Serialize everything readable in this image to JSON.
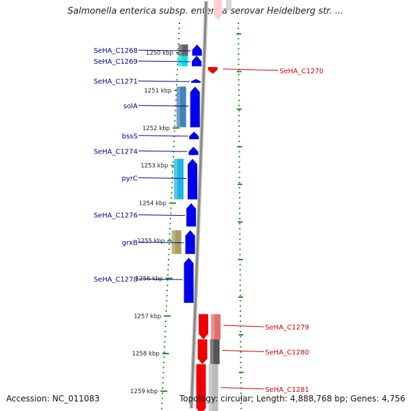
{
  "title": "Salmonella enterica subsp. enterica serovar Heidelberg str. ...",
  "footer": {
    "accession": "Accession: NC_011083",
    "summary": "Topology: circular; Length: 4,888,768 bp; Genes: 4,756"
  },
  "ticks": [
    {
      "label": "1250 kbp",
      "pos": 1250
    },
    {
      "label": "1251 kbp",
      "pos": 1251
    },
    {
      "label": "1252 kbp",
      "pos": 1252
    },
    {
      "label": "1253 kbp",
      "pos": 1253
    },
    {
      "label": "1254 kbp",
      "pos": 1254
    },
    {
      "label": "1255 kbp",
      "pos": 1255
    },
    {
      "label": "1256 kbp",
      "pos": 1256
    },
    {
      "label": "1257 kbp",
      "pos": 1257
    },
    {
      "label": "1258 kbp",
      "pos": 1258
    },
    {
      "label": "1259 kbp",
      "pos": 1259
    }
  ],
  "left_genes": [
    {
      "label": "SeHA_C1268",
      "start": 1249.78,
      "end": 1250.08,
      "cog_color": "#666666"
    },
    {
      "label": "SeHA_C1269",
      "start": 1250.08,
      "end": 1250.36,
      "cog_color": "#00e5ee"
    },
    {
      "label": "SeHA_C1271",
      "start": 1250.7,
      "end": 1250.8,
      "cog_color": null
    },
    {
      "label": "solA",
      "start": 1250.9,
      "end": 1251.98,
      "cog_color": "#4682b4"
    },
    {
      "label": "bssS",
      "start": 1252.1,
      "end": 1252.3,
      "cog_color": null
    },
    {
      "label": "SeHA_C1274",
      "start": 1252.5,
      "end": 1252.72,
      "cog_color": null
    },
    {
      "label": "pyrC",
      "start": 1252.82,
      "end": 1253.9,
      "cog_color": "#1eb4e6"
    },
    {
      "label": "SeHA_C1276",
      "start": 1254.0,
      "end": 1254.62,
      "cog_color": null
    },
    {
      "label": "grxB",
      "start": 1254.72,
      "end": 1255.35,
      "cog_color": "#a89f60"
    },
    {
      "label": "SeHA_C1278",
      "start": 1255.45,
      "end": 1256.65,
      "cog_color": null
    }
  ],
  "right_genes": [
    {
      "label": "SeHA_C1270",
      "start": 1250.38,
      "end": 1250.56,
      "cog_color": null
    },
    {
      "label": "SeHA_C1279",
      "start": 1256.95,
      "end": 1257.62,
      "cog_color": "#e07070"
    },
    {
      "label": "SeHA_C1280",
      "start": 1257.62,
      "end": 1258.28,
      "cog_color": "#555555"
    },
    {
      "label": "SeHA_C1281",
      "start": 1258.28,
      "end": 1259.6,
      "cog_color": "#bbbbbb"
    }
  ],
  "colors": {
    "forward": "#0000ee",
    "reverse": "#ee0000",
    "backbone": "#888888",
    "tick_dot": "#1a8a1a",
    "label_left": "#00008b",
    "label_right": "#cc0000"
  }
}
